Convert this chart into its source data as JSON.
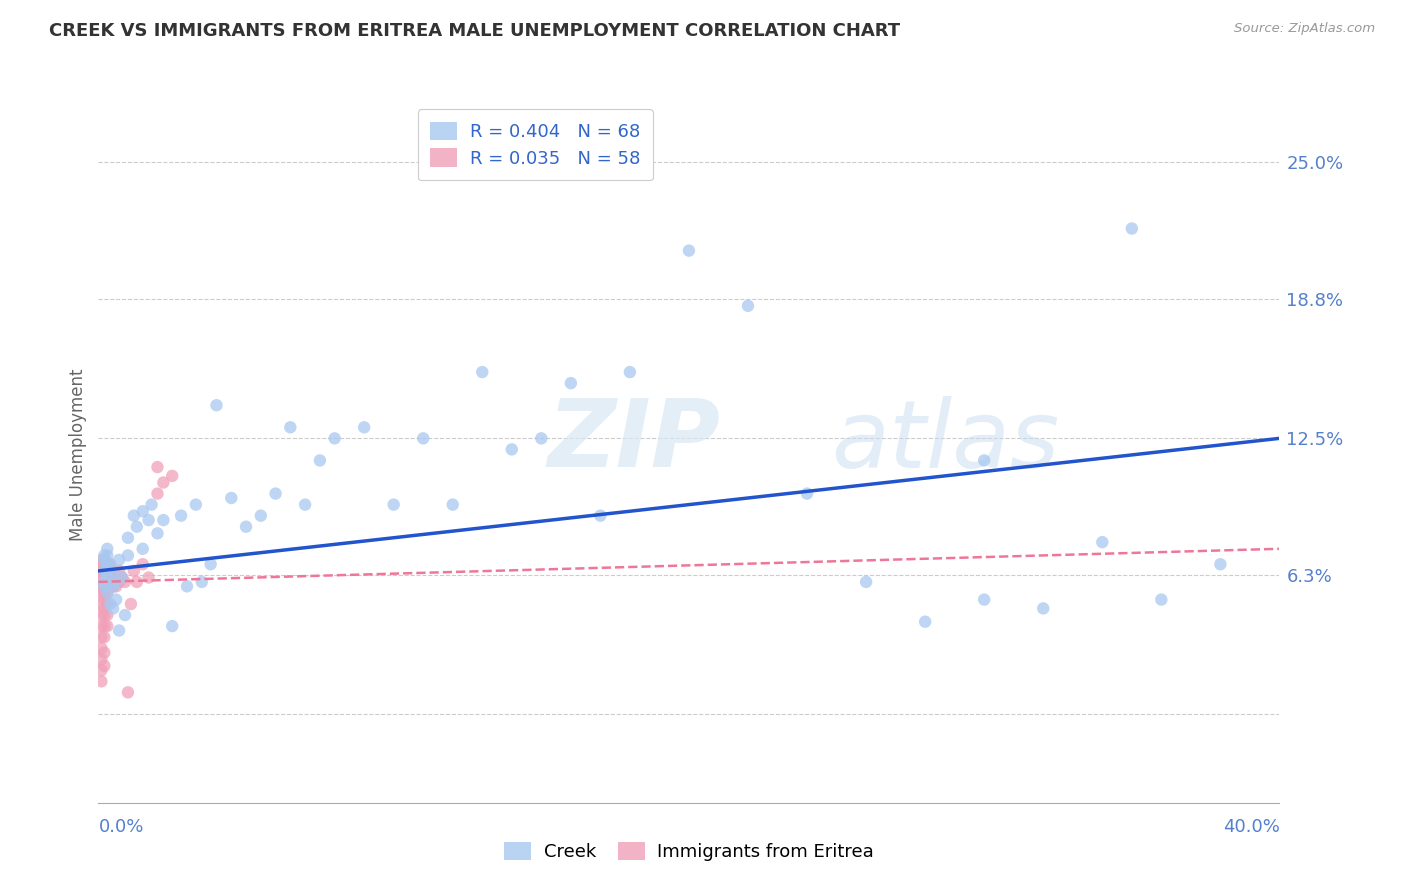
{
  "title": "CREEK VS IMMIGRANTS FROM ERITREA MALE UNEMPLOYMENT CORRELATION CHART",
  "source": "Source: ZipAtlas.com",
  "ylabel": "Male Unemployment",
  "y_ticks": [
    0.0,
    0.063,
    0.125,
    0.188,
    0.25
  ],
  "y_tick_labels": [
    "",
    "6.3%",
    "12.5%",
    "18.8%",
    "25.0%"
  ],
  "x_min": 0.0,
  "x_max": 0.4,
  "y_min": -0.04,
  "y_max": 0.275,
  "creek_color": "#a8c8f0",
  "eritrea_color": "#f0a0b8",
  "creek_line_color": "#2255cc",
  "eritrea_line_color": "#ee7799",
  "creek_label": "Creek",
  "eritrea_label": "Immigrants from Eritrea",
  "watermark_zip": "ZIP",
  "watermark_atlas": "atlas",
  "creek_R": "0.404",
  "creek_N": "68",
  "eritrea_R": "0.035",
  "eritrea_N": "58",
  "creek_points_x": [
    0.002,
    0.002,
    0.002,
    0.002,
    0.002,
    0.003,
    0.003,
    0.003,
    0.003,
    0.003,
    0.004,
    0.004,
    0.005,
    0.005,
    0.005,
    0.006,
    0.006,
    0.007,
    0.007,
    0.008,
    0.009,
    0.01,
    0.01,
    0.012,
    0.013,
    0.015,
    0.015,
    0.017,
    0.018,
    0.02,
    0.022,
    0.025,
    0.028,
    0.03,
    0.033,
    0.035,
    0.038,
    0.04,
    0.045,
    0.05,
    0.055,
    0.06,
    0.065,
    0.07,
    0.075,
    0.08,
    0.09,
    0.1,
    0.11,
    0.12,
    0.13,
    0.14,
    0.15,
    0.16,
    0.17,
    0.18,
    0.2,
    0.22,
    0.24,
    0.26,
    0.28,
    0.3,
    0.32,
    0.34,
    0.36,
    0.38,
    0.35,
    0.3
  ],
  "creek_points_y": [
    0.065,
    0.07,
    0.058,
    0.072,
    0.06,
    0.068,
    0.055,
    0.072,
    0.062,
    0.075,
    0.05,
    0.068,
    0.048,
    0.058,
    0.065,
    0.052,
    0.06,
    0.07,
    0.038,
    0.062,
    0.045,
    0.072,
    0.08,
    0.09,
    0.085,
    0.092,
    0.075,
    0.088,
    0.095,
    0.082,
    0.088,
    0.04,
    0.09,
    0.058,
    0.095,
    0.06,
    0.068,
    0.14,
    0.098,
    0.085,
    0.09,
    0.1,
    0.13,
    0.095,
    0.115,
    0.125,
    0.13,
    0.095,
    0.125,
    0.095,
    0.155,
    0.12,
    0.125,
    0.15,
    0.09,
    0.155,
    0.21,
    0.185,
    0.1,
    0.06,
    0.042,
    0.052,
    0.048,
    0.078,
    0.052,
    0.068,
    0.22,
    0.115
  ],
  "eritrea_points_x": [
    0.001,
    0.001,
    0.001,
    0.001,
    0.001,
    0.001,
    0.001,
    0.001,
    0.001,
    0.001,
    0.001,
    0.001,
    0.001,
    0.001,
    0.001,
    0.002,
    0.002,
    0.002,
    0.002,
    0.002,
    0.002,
    0.002,
    0.002,
    0.002,
    0.002,
    0.002,
    0.002,
    0.002,
    0.003,
    0.003,
    0.003,
    0.003,
    0.003,
    0.003,
    0.003,
    0.003,
    0.004,
    0.004,
    0.004,
    0.005,
    0.005,
    0.005,
    0.006,
    0.006,
    0.007,
    0.007,
    0.008,
    0.009,
    0.01,
    0.011,
    0.012,
    0.013,
    0.015,
    0.017,
    0.02,
    0.022,
    0.025,
    0.02
  ],
  "eritrea_points_y": [
    0.062,
    0.065,
    0.068,
    0.07,
    0.058,
    0.062,
    0.055,
    0.05,
    0.045,
    0.04,
    0.035,
    0.03,
    0.025,
    0.02,
    0.015,
    0.065,
    0.068,
    0.07,
    0.06,
    0.058,
    0.055,
    0.052,
    0.048,
    0.045,
    0.04,
    0.035,
    0.028,
    0.022,
    0.068,
    0.065,
    0.062,
    0.058,
    0.055,
    0.05,
    0.045,
    0.04,
    0.068,
    0.065,
    0.06,
    0.065,
    0.062,
    0.058,
    0.062,
    0.058,
    0.065,
    0.06,
    0.062,
    0.06,
    0.01,
    0.05,
    0.065,
    0.06,
    0.068,
    0.062,
    0.1,
    0.105,
    0.108,
    0.112
  ]
}
